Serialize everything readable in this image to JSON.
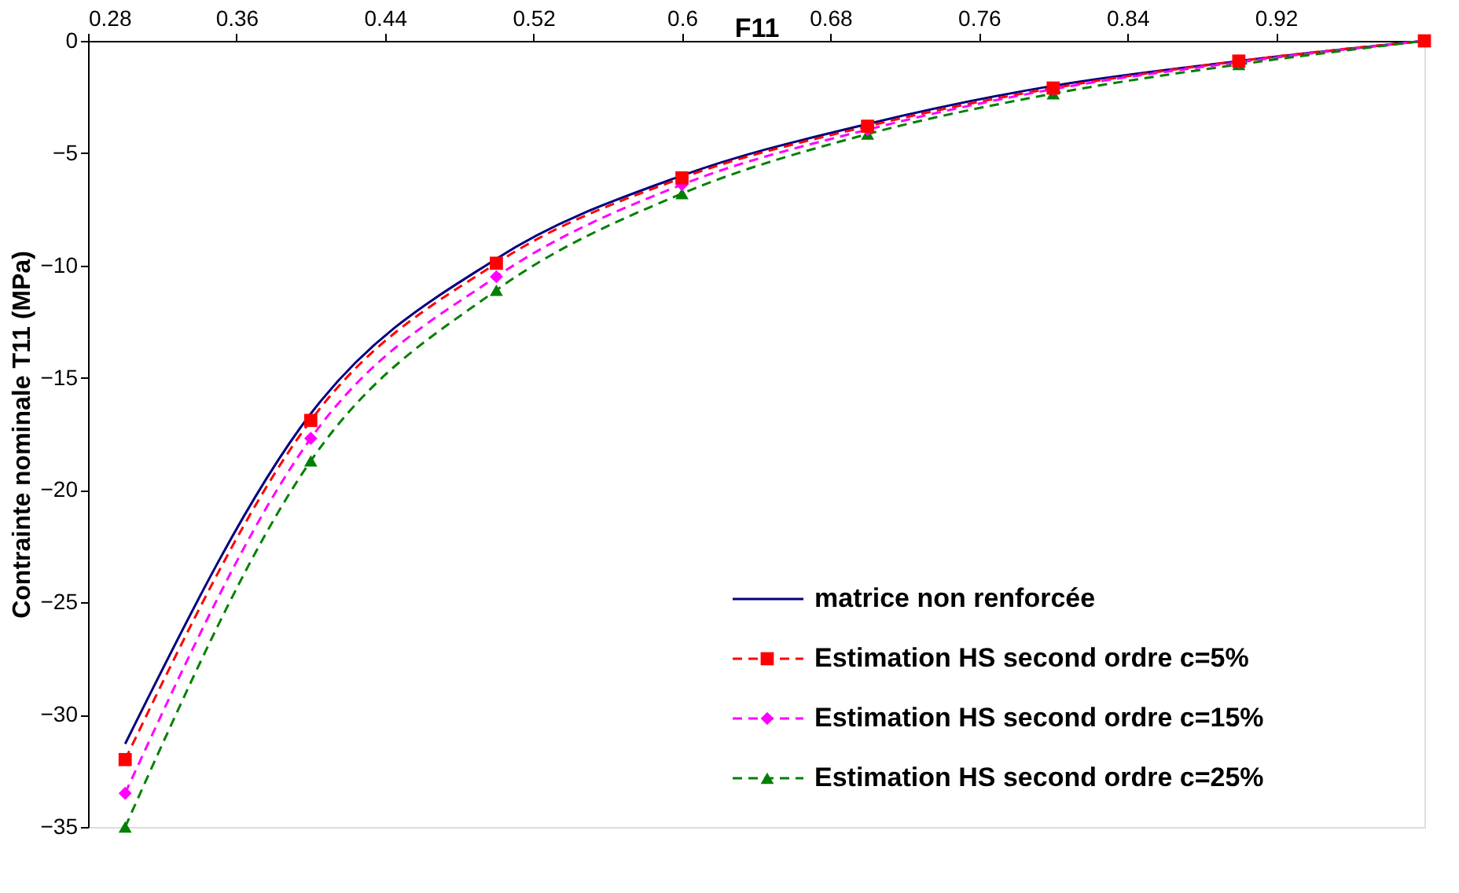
{
  "chart_data": {
    "type": "line",
    "xlabel": "F11",
    "ylabel": "Contrainte nominale T11 (MPa)",
    "x": [
      0.3,
      0.4,
      0.5,
      0.6,
      0.7,
      0.8,
      0.9,
      1.0
    ],
    "xlim": [
      0.28,
      1.0
    ],
    "xticks": [
      0.28,
      0.36,
      0.44,
      0.52,
      0.6,
      0.68,
      0.76,
      0.84,
      0.92
    ],
    "ylim": [
      -35,
      0
    ],
    "yticks": [
      -35,
      -30,
      -25,
      -20,
      -15,
      -10,
      -5,
      0
    ],
    "grid": false,
    "legend": "bottom right",
    "series": [
      {
        "name": "matrice non renforcée",
        "color": "#000080",
        "marker": "none",
        "line_style": "solid",
        "values": [
          -31.3,
          -16.6,
          -9.7,
          -6.0,
          -3.7,
          -2.0,
          -0.9,
          0
        ]
      },
      {
        "name": "Estimation HS second ordre c=5%",
        "color": "#ff0000",
        "marker": "square",
        "line_style": "dashed",
        "values": [
          -32.0,
          -16.9,
          -9.9,
          -6.1,
          -3.8,
          -2.1,
          -0.9,
          0
        ]
      },
      {
        "name": "Estimation HS second ordre c=15%",
        "color": "#ff00ff",
        "marker": "diamond",
        "line_style": "dashed",
        "values": [
          -33.5,
          -17.7,
          -10.5,
          -6.4,
          -3.95,
          -2.15,
          -0.95,
          0
        ]
      },
      {
        "name": "Estimation HS second ordre c=25%",
        "color": "#008000",
        "marker": "triangle",
        "line_style": "dashed",
        "values": [
          -35.0,
          -18.7,
          -11.1,
          -6.8,
          -4.15,
          -2.35,
          -1.05,
          0
        ]
      }
    ]
  }
}
